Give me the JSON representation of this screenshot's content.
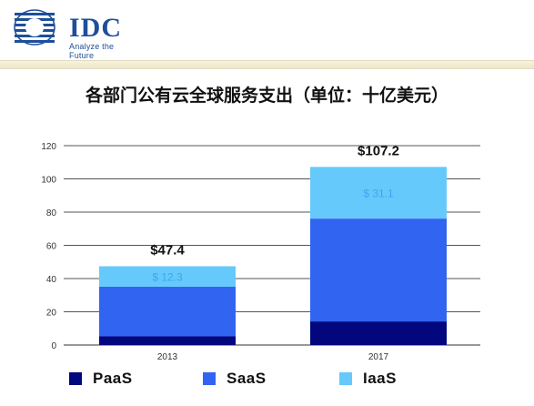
{
  "logo": {
    "text": "IDC",
    "tagline": "Analyze the Future"
  },
  "colors": {
    "paas": "#02077e",
    "saas": "#3264f2",
    "iaas": "#66c9fb",
    "logo": "#1d4f9a",
    "grid": "#555555"
  },
  "chart_data": {
    "type": "bar",
    "stacked": true,
    "title": "各部门公有云全球服务支出（单位：十亿美元）",
    "categories": [
      "2013",
      "2017"
    ],
    "series": [
      {
        "name": "PaaS",
        "values": [
          5.2,
          14.2
        ]
      },
      {
        "name": "SaaS",
        "values": [
          29.9,
          61.9
        ]
      },
      {
        "name": "IaaS",
        "values": [
          12.3,
          31.1
        ]
      }
    ],
    "totals": [
      "$47.4",
      "$107.2"
    ],
    "segment_labels": [
      "$ 12.3",
      "$ 31.1"
    ],
    "ylim": [
      0,
      120
    ],
    "yticks": [
      0,
      20,
      40,
      60,
      80,
      100,
      120
    ],
    "grid": true,
    "legend_position": "bottom"
  }
}
